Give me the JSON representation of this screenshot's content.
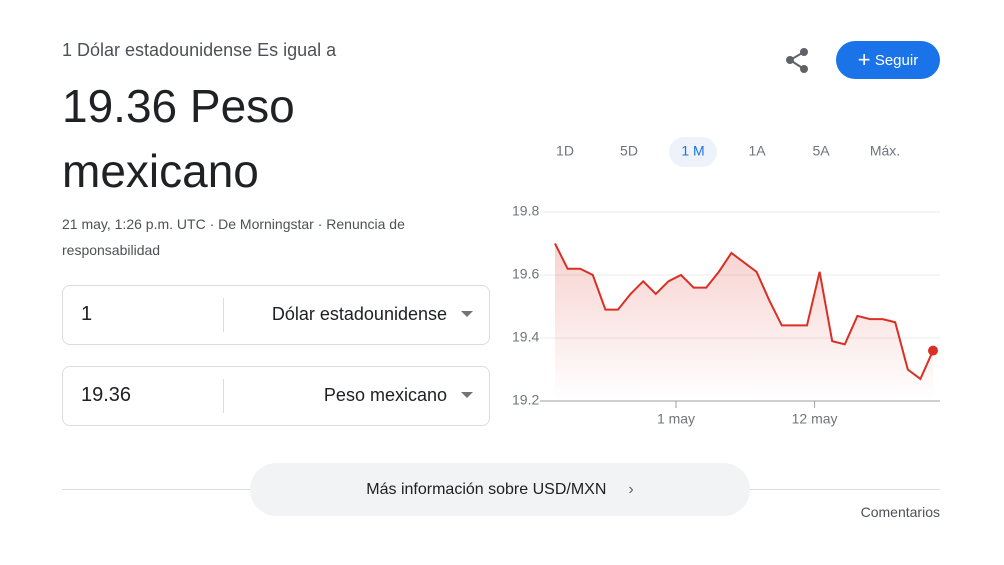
{
  "header": {
    "subtitle": "1 Dólar estadounidense Es igual a",
    "result": "19.36 Peso mexicano",
    "source": "21 may, 1:26 p.m. UTC · De Morningstar · Renuncia de responsabilidad"
  },
  "actions": {
    "follow": "Seguir"
  },
  "converter": [
    {
      "amount": "1",
      "currency": "Dólar estadounidense"
    },
    {
      "amount": "19.36",
      "currency": "Peso mexicano"
    }
  ],
  "ranges": {
    "options": [
      "1D",
      "5D",
      "1 M",
      "1A",
      "5A",
      "Máx."
    ],
    "selected": 2
  },
  "chart_data": {
    "type": "line",
    "categories": [
      null,
      null,
      null,
      null,
      null,
      null,
      null,
      null,
      null,
      null,
      "1 may",
      null,
      null,
      null,
      null,
      null,
      null,
      null,
      null,
      null,
      null,
      "12 may",
      null,
      null,
      null,
      null,
      null,
      null,
      null,
      null,
      null
    ],
    "series": [
      {
        "color": "#d93025",
        "values": [
          19.7,
          19.62,
          19.62,
          19.6,
          19.49,
          19.49,
          19.54,
          19.58,
          19.54,
          19.58,
          19.6,
          19.56,
          19.56,
          19.61,
          19.67,
          19.64,
          19.61,
          19.52,
          19.44,
          19.44,
          19.44,
          19.61,
          19.39,
          19.38,
          19.47,
          19.46,
          19.46,
          19.45,
          19.3,
          19.27,
          19.36
        ]
      }
    ],
    "ylim": [
      19.2,
      19.8
    ],
    "yticks": [
      19.2,
      19.4,
      19.6,
      19.8
    ],
    "grid": true
  },
  "footer": {
    "more": "Más información sobre USD/MXN",
    "feedback": "Comentarios"
  }
}
